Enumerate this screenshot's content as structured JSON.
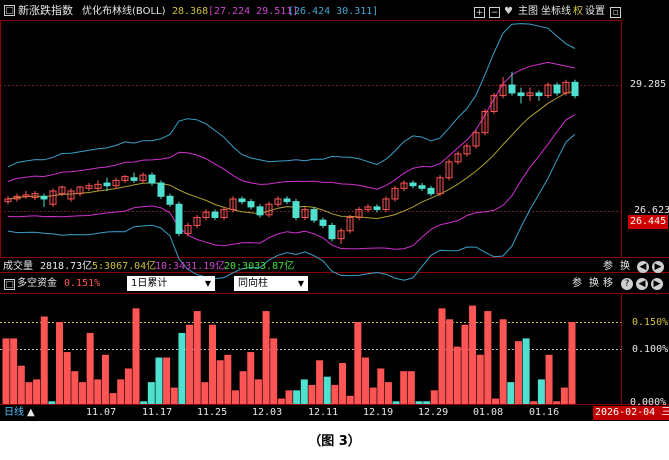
{
  "header": {
    "index_name": "新涨跌指数",
    "indicator_label": "优化布林线(BOLL)",
    "val_mid": "28.368",
    "val_upper_lower": "[27.224 29.511]",
    "val_range": "[26.424 30.311]",
    "toolbar": {
      "plus": "+",
      "minus": "−",
      "heart": "♥",
      "main": "主图",
      "coord": "坐标线",
      "right": "权",
      "settings": "设置"
    }
  },
  "price_axis": {
    "top_label": "29.285",
    "mid_label": "26.623",
    "last_label": "26.445"
  },
  "volume_bar": {
    "label": "成交量",
    "total": "2818.73亿",
    "ma5": "5:3067.04亿",
    "ma10": "10:3431.19亿",
    "ma20": "20:3033.87亿",
    "buttons": [
      "参",
      "换",
      "◀",
      "▶"
    ]
  },
  "fund_panel": {
    "title": "多空资金",
    "value": "0.151%",
    "select_period": "1日累计",
    "select_mode": "同向柱",
    "buttons": [
      "参",
      "换",
      "移"
    ],
    "axis": {
      "top": "0.150%",
      "mid": "0.100%",
      "bottom": "0.000%"
    }
  },
  "footer": {
    "period": "日线",
    "dates": [
      "11.07",
      "11.17",
      "11.25",
      "12.03",
      "12.11",
      "12.19",
      "12.29",
      "01.08",
      "01.16"
    ],
    "current_date": "2026-02-04 三"
  },
  "caption": "（图 3）",
  "colors": {
    "up": "#ff5555",
    "down": "#50e0d0",
    "boll_outer": "#3aa0c8",
    "boll_mid_band": "#d030d0",
    "boll_center": "#b0a030",
    "grid": "#8b0000"
  },
  "candles": [
    [
      24.9,
      25.0,
      24.8,
      25.1
    ],
    [
      25.0,
      25.1,
      24.9,
      25.2
    ],
    [
      25.1,
      25.15,
      25.0,
      25.3
    ],
    [
      25.05,
      25.2,
      24.95,
      25.3
    ],
    [
      25.1,
      25.0,
      24.7,
      25.2
    ],
    [
      24.8,
      25.3,
      24.7,
      25.4
    ],
    [
      25.2,
      25.45,
      25.1,
      25.5
    ],
    [
      25.0,
      25.3,
      24.9,
      25.4
    ],
    [
      25.2,
      25.45,
      25.1,
      25.5
    ],
    [
      25.4,
      25.5,
      25.3,
      25.6
    ],
    [
      25.4,
      25.55,
      25.3,
      25.7
    ],
    [
      25.6,
      25.5,
      25.3,
      25.8
    ],
    [
      25.5,
      25.7,
      25.4,
      25.8
    ],
    [
      25.7,
      25.85,
      25.6,
      25.9
    ],
    [
      25.8,
      25.7,
      25.6,
      26.0
    ],
    [
      25.7,
      25.9,
      25.6,
      26.0
    ],
    [
      25.9,
      25.6,
      25.5,
      26.0
    ],
    [
      25.6,
      25.1,
      25.0,
      25.7
    ],
    [
      25.1,
      24.8,
      24.7,
      25.2
    ],
    [
      24.8,
      23.7,
      23.6,
      24.9
    ],
    [
      23.7,
      24.0,
      23.6,
      24.1
    ],
    [
      24.0,
      24.3,
      23.9,
      24.4
    ],
    [
      24.3,
      24.5,
      24.2,
      24.6
    ],
    [
      24.5,
      24.3,
      24.2,
      24.6
    ],
    [
      24.3,
      24.6,
      24.2,
      24.7
    ],
    [
      24.6,
      25.0,
      24.5,
      25.1
    ],
    [
      25.0,
      24.9,
      24.8,
      25.1
    ],
    [
      24.9,
      24.7,
      24.6,
      25.0
    ],
    [
      24.7,
      24.4,
      24.3,
      24.8
    ],
    [
      24.4,
      24.8,
      24.3,
      24.9
    ],
    [
      24.8,
      25.0,
      24.7,
      25.1
    ],
    [
      25.0,
      24.9,
      24.8,
      25.1
    ],
    [
      24.9,
      24.3,
      24.2,
      25.0
    ],
    [
      24.3,
      24.6,
      24.2,
      24.7
    ],
    [
      24.6,
      24.2,
      24.1,
      24.7
    ],
    [
      24.2,
      24.0,
      23.9,
      24.3
    ],
    [
      24.0,
      23.5,
      23.4,
      24.1
    ],
    [
      23.5,
      23.8,
      23.3,
      23.9
    ],
    [
      23.8,
      24.3,
      23.7,
      24.4
    ],
    [
      24.3,
      24.6,
      24.2,
      24.7
    ],
    [
      24.6,
      24.7,
      24.5,
      24.8
    ],
    [
      24.7,
      24.6,
      24.5,
      24.8
    ],
    [
      24.6,
      25.0,
      24.5,
      25.1
    ],
    [
      25.0,
      25.4,
      24.9,
      25.5
    ],
    [
      25.4,
      25.6,
      25.3,
      25.7
    ],
    [
      25.6,
      25.5,
      25.4,
      25.7
    ],
    [
      25.5,
      25.4,
      25.3,
      25.6
    ],
    [
      25.4,
      25.2,
      25.1,
      25.5
    ],
    [
      25.2,
      25.8,
      25.1,
      25.9
    ],
    [
      25.8,
      26.4,
      25.7,
      26.5
    ],
    [
      26.4,
      26.7,
      26.3,
      26.8
    ],
    [
      26.7,
      27.0,
      26.6,
      27.1
    ],
    [
      27.0,
      27.5,
      26.9,
      27.6
    ],
    [
      27.5,
      28.3,
      27.4,
      28.4
    ],
    [
      28.3,
      28.9,
      28.2,
      29.0
    ],
    [
      28.9,
      29.3,
      28.8,
      29.6
    ],
    [
      29.3,
      29.0,
      28.9,
      29.8
    ],
    [
      29.0,
      28.9,
      28.6,
      29.2
    ],
    [
      28.9,
      29.0,
      28.7,
      29.2
    ],
    [
      29.0,
      28.9,
      28.7,
      29.1
    ],
    [
      28.9,
      29.3,
      28.8,
      29.4
    ],
    [
      29.3,
      29.0,
      28.9,
      29.4
    ],
    [
      29.0,
      29.4,
      28.9,
      29.5
    ],
    [
      29.4,
      28.9,
      28.8,
      29.5
    ]
  ],
  "fund_bars": [
    [
      0.12,
      "up"
    ],
    [
      0.12,
      "up"
    ],
    [
      0.07,
      "up"
    ],
    [
      0.04,
      "up"
    ],
    [
      0.045,
      "up"
    ],
    [
      0.16,
      "up"
    ],
    [
      0.005,
      "down"
    ],
    [
      0.15,
      "up"
    ],
    [
      0.095,
      "up"
    ],
    [
      0.06,
      "up"
    ],
    [
      0.04,
      "up"
    ],
    [
      0.13,
      "up"
    ],
    [
      0.045,
      "up"
    ],
    [
      0.09,
      "up"
    ],
    [
      0.02,
      "up"
    ],
    [
      0.045,
      "up"
    ],
    [
      0.065,
      "up"
    ],
    [
      0.175,
      "up"
    ],
    [
      0.005,
      "down"
    ],
    [
      0.04,
      "down"
    ],
    [
      0.085,
      "down"
    ],
    [
      0.085,
      "up"
    ],
    [
      0.03,
      "up"
    ],
    [
      0.13,
      "down"
    ],
    [
      0.145,
      "up"
    ],
    [
      0.17,
      "up"
    ],
    [
      0.04,
      "up"
    ],
    [
      0.145,
      "up"
    ],
    [
      0.08,
      "up"
    ],
    [
      0.09,
      "up"
    ],
    [
      0.025,
      "up"
    ],
    [
      0.06,
      "up"
    ],
    [
      0.095,
      "up"
    ],
    [
      0.045,
      "up"
    ],
    [
      0.17,
      "up"
    ],
    [
      0.12,
      "up"
    ],
    [
      0.01,
      "up"
    ],
    [
      0.025,
      "up"
    ],
    [
      0.025,
      "down"
    ],
    [
      0.045,
      "down"
    ],
    [
      0.035,
      "up"
    ],
    [
      0.08,
      "up"
    ],
    [
      0.05,
      "down"
    ],
    [
      0.035,
      "up"
    ],
    [
      0.075,
      "up"
    ],
    [
      0.015,
      "up"
    ],
    [
      0.15,
      "up"
    ],
    [
      0.085,
      "up"
    ],
    [
      0.03,
      "up"
    ],
    [
      0.065,
      "up"
    ],
    [
      0.04,
      "up"
    ],
    [
      0.005,
      "down"
    ],
    [
      0.06,
      "up"
    ],
    [
      0.06,
      "up"
    ],
    [
      0.005,
      "down"
    ],
    [
      0.005,
      "down"
    ],
    [
      0.025,
      "up"
    ],
    [
      0.175,
      "up"
    ],
    [
      0.155,
      "up"
    ],
    [
      0.105,
      "up"
    ],
    [
      0.145,
      "up"
    ],
    [
      0.18,
      "up"
    ],
    [
      0.09,
      "up"
    ],
    [
      0.17,
      "up"
    ],
    [
      0.01,
      "up"
    ],
    [
      0.155,
      "up"
    ],
    [
      0.04,
      "down"
    ],
    [
      0.115,
      "up"
    ],
    [
      0.12,
      "down"
    ],
    [
      0.005,
      "up"
    ],
    [
      0.045,
      "down"
    ],
    [
      0.09,
      "up"
    ],
    [
      0.005,
      "up"
    ],
    [
      0.03,
      "up"
    ],
    [
      0.15,
      "up"
    ]
  ]
}
